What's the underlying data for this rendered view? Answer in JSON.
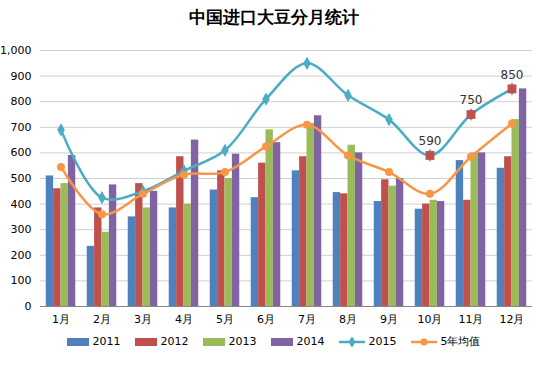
{
  "chart_data": {
    "type": "bar",
    "title": "中国进口大豆分月统计",
    "categories": [
      "1月",
      "2月",
      "3月",
      "4月",
      "5月",
      "6月",
      "7月",
      "8月",
      "9月",
      "10月",
      "11月",
      "12月"
    ],
    "series": [
      {
        "name": "2011",
        "type": "bar",
        "color": "#4F81BD",
        "values": [
          510,
          235,
          350,
          385,
          455,
          425,
          530,
          445,
          410,
          380,
          570,
          540
        ]
      },
      {
        "name": "2012",
        "type": "bar",
        "color": "#C0504D",
        "values": [
          460,
          385,
          480,
          585,
          530,
          560,
          585,
          440,
          495,
          400,
          415,
          585
        ]
      },
      {
        "name": "2013",
        "type": "bar",
        "color": "#9BBB59",
        "values": [
          480,
          290,
          385,
          400,
          500,
          690,
          715,
          630,
          470,
          415,
          600,
          730
        ]
      },
      {
        "name": "2014",
        "type": "bar",
        "color": "#8064A2",
        "values": [
          590,
          475,
          450,
          650,
          595,
          640,
          745,
          600,
          500,
          410,
          600,
          850
        ]
      },
      {
        "name": "2015",
        "type": "line",
        "color": "#4BACC6",
        "marker": "diamond",
        "line_style": "smooth",
        "values": [
          690,
          425,
          450,
          530,
          610,
          810,
          950,
          825,
          730,
          590,
          750,
          850
        ]
      },
      {
        "name": "5年均值",
        "type": "line",
        "color": "#F79646",
        "marker": "circle",
        "line_style": "smooth",
        "values": [
          545,
          360,
          440,
          515,
          525,
          625,
          710,
          590,
          525,
          440,
          585,
          715
        ]
      }
    ],
    "annotations": [
      {
        "category": "10月",
        "value": 590,
        "marker": "square",
        "color": "#C0504D"
      },
      {
        "category": "11月",
        "value": 750,
        "marker": "square",
        "color": "#C0504D"
      },
      {
        "category": "12月",
        "value": 850,
        "marker": "square",
        "color": "#C0504D"
      }
    ],
    "ylim": [
      0,
      1000
    ],
    "yticks": [
      0,
      100,
      200,
      300,
      400,
      500,
      600,
      700,
      800,
      900,
      1000
    ],
    "grid": true,
    "legend": "bottom"
  }
}
